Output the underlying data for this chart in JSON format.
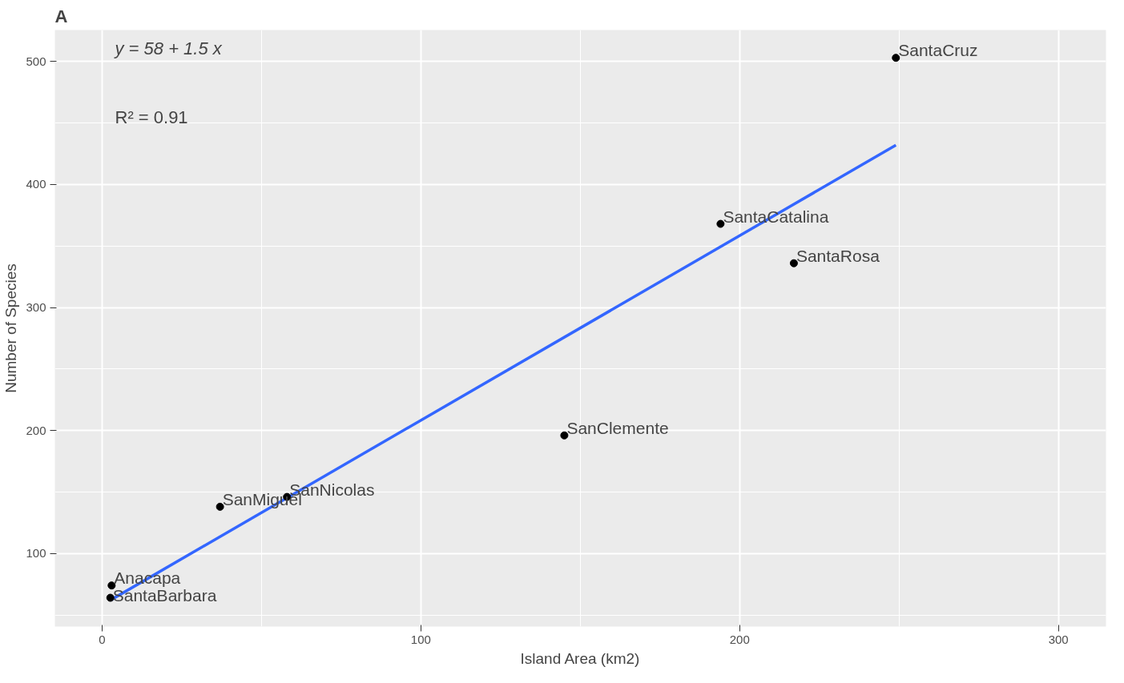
{
  "chart_data": {
    "type": "scatter",
    "title": "A",
    "xlabel": "Island Area (km2)",
    "ylabel": "Number of Species",
    "xlim": [
      -14.8,
      314.9
    ],
    "ylim": [
      40.6,
      525.6
    ],
    "xticks": [
      0,
      100,
      200,
      300
    ],
    "yticks": [
      100,
      200,
      300,
      400,
      500
    ],
    "grid": true,
    "marker": "circle",
    "series": [
      {
        "color": "#000000",
        "x": [
          249,
          194,
          217,
          145,
          58,
          37,
          3,
          2.6
        ],
        "values": [
          503,
          368,
          336,
          196,
          146,
          138,
          74,
          64
        ]
      },
      {
        "type": "line",
        "marker": "none",
        "color": "#3366ff",
        "x": [
          2.6,
          249
        ],
        "values": [
          62,
          432
        ]
      }
    ],
    "annotations": [
      "y = 58 + 1.5 x",
      "R² = 0.91",
      {
        "text": "SantaCruz",
        "x": 249,
        "y": 503
      },
      {
        "text": "SantaCatalina",
        "x": 194,
        "y": 368
      },
      {
        "text": "SantaRosa",
        "x": 217,
        "y": 336
      },
      {
        "text": "SanClemente",
        "x": 145,
        "y": 196
      },
      {
        "text": "SanNicolas",
        "x": 58,
        "y": 146
      },
      {
        "text": "SanMiguel",
        "x": 37,
        "y": 138
      },
      {
        "text": "Anacapa",
        "x": 3,
        "y": 74
      },
      {
        "text": "SantaBarbara",
        "x": 2.6,
        "y": 64
      }
    ]
  }
}
